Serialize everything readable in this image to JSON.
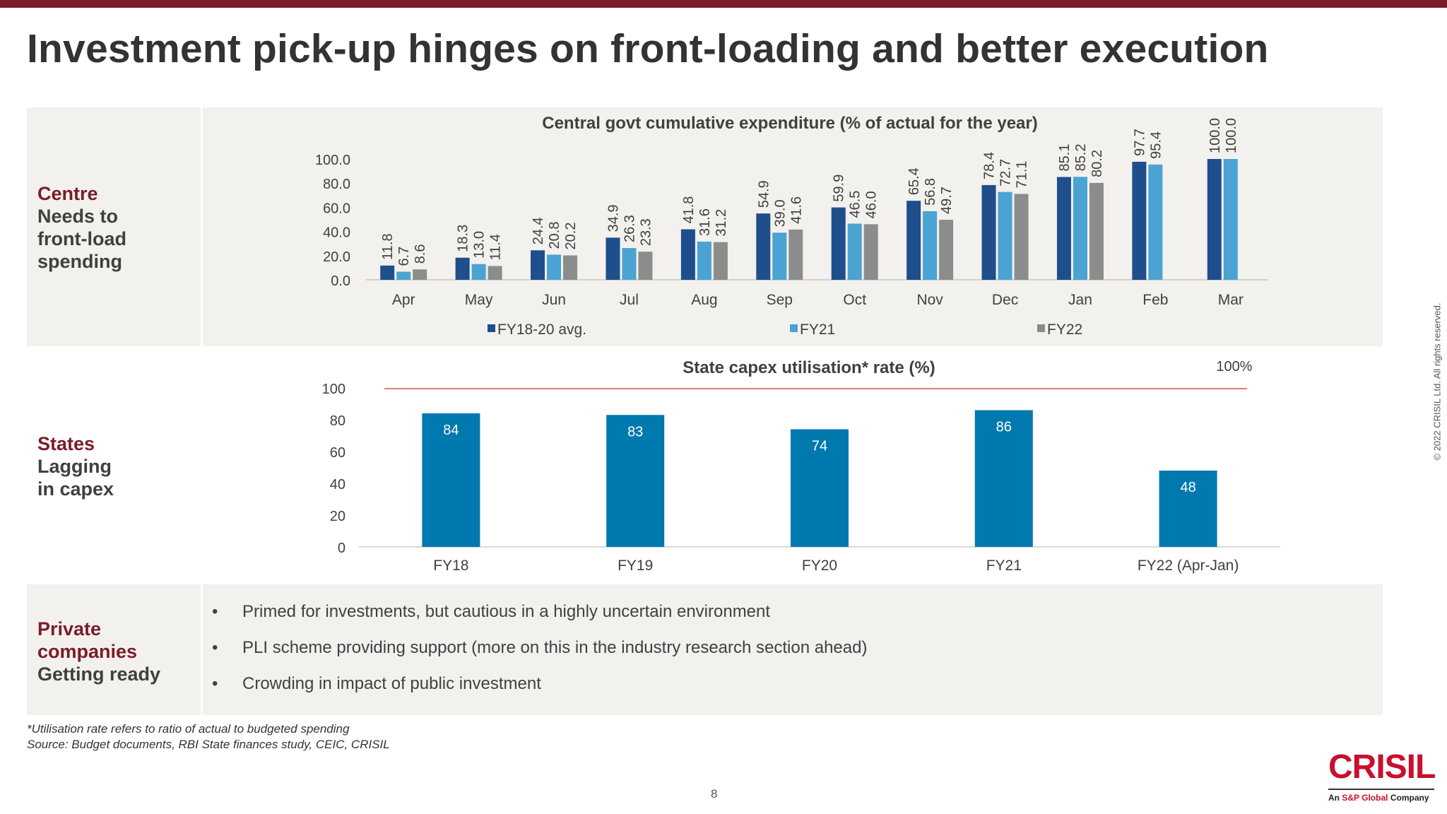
{
  "page": {
    "title": "Investment pick-up hinges on front-loading and better execution",
    "page_number": "8",
    "copyright": "© 2022 CRISIL Ltd. All rights reserved.",
    "footnote": "*Utilisation rate refers to ratio of actual to budgeted spending",
    "source": "Source: Budget documents, RBI State finances study, CEIC, CRISIL",
    "logo": {
      "name": "CRISIL",
      "tagline_prefix": "An ",
      "tagline_brand": "S&P Global",
      "tagline_suffix": " Company"
    },
    "colors": {
      "brand": "#7b1c2a",
      "fy1820": "#1f4e8c",
      "fy21": "#4aa3d3",
      "fy22": "#8c8c8c",
      "state_bar": "#0079ae",
      "ref_line": "#e07c7c"
    }
  },
  "rows": {
    "centre": {
      "label_hl": "Centre",
      "label_lines": [
        "Needs to",
        "front-load",
        "spending"
      ]
    },
    "states": {
      "label_hl": "States",
      "label_lines": [
        "Lagging",
        "in capex"
      ]
    },
    "private": {
      "label_hl_lines": [
        "Private",
        "companies"
      ],
      "label_lines": [
        "Getting ready"
      ]
    }
  },
  "bullets": [
    "Primed for investments, but cautious in a highly uncertain environment",
    "PLI scheme providing support (more on this in the industry research section ahead)",
    "Crowding in impact of public investment"
  ],
  "chart_data": [
    {
      "type": "bar",
      "title": "Central govt cumulative expenditure (% of actual for the year)",
      "categories": [
        "Apr",
        "May",
        "Jun",
        "Jul",
        "Aug",
        "Sep",
        "Oct",
        "Nov",
        "Dec",
        "Jan",
        "Feb",
        "Mar"
      ],
      "series": [
        {
          "name": "FY18-20 avg.",
          "color": "#1f4e8c",
          "values": [
            11.8,
            18.3,
            24.4,
            34.9,
            41.8,
            54.9,
            59.9,
            65.4,
            78.4,
            85.1,
            97.7,
            100.0
          ]
        },
        {
          "name": "FY21",
          "color": "#4aa3d3",
          "values": [
            6.7,
            13.0,
            20.8,
            26.3,
            31.6,
            39.0,
            46.5,
            56.8,
            72.7,
            85.2,
            95.4,
            100.0
          ]
        },
        {
          "name": "FY22",
          "color": "#8c8c8c",
          "values": [
            8.6,
            11.4,
            20.2,
            23.3,
            31.2,
            41.6,
            46.0,
            49.7,
            71.1,
            80.2,
            null,
            null
          ]
        }
      ],
      "yticks": [
        "0.0",
        "20.0",
        "40.0",
        "60.0",
        "80.0",
        "100.0"
      ],
      "ylim": [
        0,
        100
      ],
      "legend_position": "bottom"
    },
    {
      "type": "bar",
      "title": "State capex utilisation* rate (%)",
      "categories": [
        "FY18",
        "FY19",
        "FY20",
        "FY21",
        "FY22 (Apr-Jan)"
      ],
      "values": [
        84,
        83,
        74,
        86,
        48
      ],
      "yticks": [
        "0",
        "20",
        "40",
        "60",
        "80",
        "100"
      ],
      "ylim": [
        0,
        100
      ],
      "reference_line": {
        "value": 100,
        "label": "100%"
      },
      "color": "#0079ae"
    }
  ]
}
